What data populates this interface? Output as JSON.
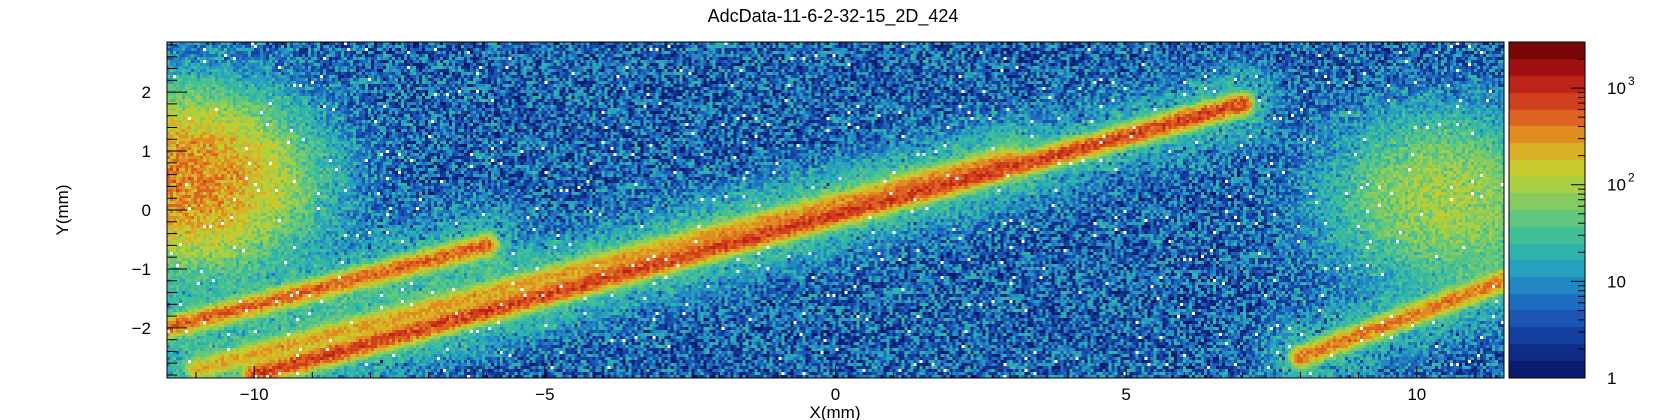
{
  "chart_data": {
    "type": "heatmap",
    "title": "AdcData-11-6-2-32-15_2D_424",
    "xlabel": "X(mm)",
    "ylabel": "Y(mm)",
    "xlim": [
      -11.5,
      11.5
    ],
    "ylim": [
      -2.85,
      2.85
    ],
    "x_ticks": [
      -10,
      -5,
      0,
      5,
      10
    ],
    "y_ticks": [
      -2,
      -1,
      0,
      1,
      2
    ],
    "colorbar": {
      "scale": "log",
      "range": [
        1,
        3000
      ],
      "ticks": [
        {
          "value": 1,
          "label": "1"
        },
        {
          "value": 10,
          "label": "10"
        },
        {
          "value": 100,
          "label": "10",
          "exp": "2"
        },
        {
          "value": 1000,
          "label": "10",
          "exp": "3"
        }
      ],
      "palette": [
        "#0a1a6e",
        "#0f2d87",
        "#143f9e",
        "#1a55b4",
        "#1f6dbf",
        "#2388c2",
        "#27a0bf",
        "#30b3ad",
        "#43bf95",
        "#62c67f",
        "#85cb60",
        "#a9d043",
        "#c7cb2b",
        "#d9b126",
        "#e08c22",
        "#dd6320",
        "#d0401c",
        "#bd2317",
        "#a01010",
        "#7a0707"
      ]
    },
    "background_counts": "low (1-30 counts) noise across the full plane",
    "tracks": [
      {
        "name": "",
        "x": [
          -11.5,
          -6.0
        ],
        "y": [
          -2.0,
          -0.6
        ],
        "peak_counts": 600
      },
      {
        "name": "",
        "x": [
          -11.0,
          3.0
        ],
        "y": [
          -2.7,
          0.9
        ],
        "peak_counts": 300
      },
      {
        "name": "",
        "x": [
          -10.0,
          7.0
        ],
        "y": [
          -2.8,
          1.8
        ],
        "peak_counts": 900
      },
      {
        "name": "",
        "x": [
          8.0,
          11.5
        ],
        "y": [
          -2.5,
          -1.2
        ],
        "peak_counts": 500
      }
    ],
    "hot_regions": [
      {
        "x": -11.2,
        "y": 0.5,
        "peak_counts": 500
      },
      {
        "x": 10.5,
        "y": 0.2,
        "peak_counts": 120
      }
    ]
  }
}
